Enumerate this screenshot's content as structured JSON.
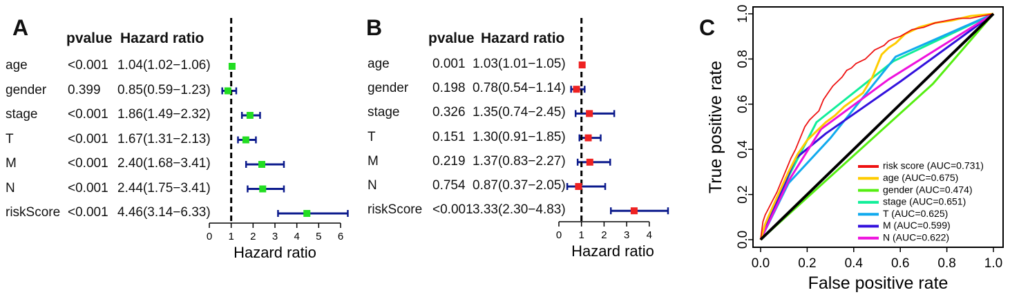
{
  "chart_data": [
    {
      "type": "forest",
      "panel_label": "A",
      "headers": {
        "pvalue": "pvalue",
        "hr": "Hazard ratio"
      },
      "xlabel": "Hazard ratio",
      "xlim": [
        0,
        6
      ],
      "xticks": [
        "0",
        "1",
        "2",
        "3",
        "4",
        "5",
        "6"
      ],
      "reference_line": 1,
      "marker_color": "#22dd22",
      "ci_color": "#0b1a8c",
      "rows": [
        {
          "name": "age",
          "pvalue": "<0.001",
          "hr_text": "1.04(1.02−1.06)",
          "hr": 1.04,
          "lower": 1.02,
          "upper": 1.06
        },
        {
          "name": "gender",
          "pvalue": "0.399",
          "hr_text": "0.85(0.59−1.23)",
          "hr": 0.85,
          "lower": 0.59,
          "upper": 1.23
        },
        {
          "name": "stage",
          "pvalue": "<0.001",
          "hr_text": "1.86(1.49−2.32)",
          "hr": 1.86,
          "lower": 1.49,
          "upper": 2.32
        },
        {
          "name": "T",
          "pvalue": "<0.001",
          "hr_text": "1.67(1.31−2.13)",
          "hr": 1.67,
          "lower": 1.31,
          "upper": 2.13
        },
        {
          "name": "M",
          "pvalue": "<0.001",
          "hr_text": "2.40(1.68−3.41)",
          "hr": 2.4,
          "lower": 1.68,
          "upper": 3.41
        },
        {
          "name": "N",
          "pvalue": "<0.001",
          "hr_text": "2.44(1.75−3.41)",
          "hr": 2.44,
          "lower": 1.75,
          "upper": 3.41
        },
        {
          "name": "riskScore",
          "pvalue": "<0.001",
          "hr_text": "4.46(3.14−6.33)",
          "hr": 4.46,
          "lower": 3.14,
          "upper": 6.33
        }
      ]
    },
    {
      "type": "forest",
      "panel_label": "B",
      "headers": {
        "pvalue": "pvalue",
        "hr": "Hazard ratio"
      },
      "xlabel": "Hazard ratio",
      "xlim": [
        0,
        4.8
      ],
      "xticks": [
        "0",
        "1",
        "2",
        "3",
        "4"
      ],
      "reference_line": 1,
      "marker_color": "#ee2222",
      "ci_color": "#0b1a8c",
      "rows": [
        {
          "name": "age",
          "pvalue": "0.001",
          "hr_text": "1.03(1.01−1.05)",
          "hr": 1.03,
          "lower": 1.01,
          "upper": 1.05
        },
        {
          "name": "gender",
          "pvalue": "0.198",
          "hr_text": "0.78(0.54−1.14)",
          "hr": 0.78,
          "lower": 0.54,
          "upper": 1.14
        },
        {
          "name": "stage",
          "pvalue": "0.326",
          "hr_text": "1.35(0.74−2.45)",
          "hr": 1.35,
          "lower": 0.74,
          "upper": 2.45
        },
        {
          "name": "T",
          "pvalue": "0.151",
          "hr_text": "1.30(0.91−1.85)",
          "hr": 1.3,
          "lower": 0.91,
          "upper": 1.85
        },
        {
          "name": "M",
          "pvalue": "0.219",
          "hr_text": "1.37(0.83−2.27)",
          "hr": 1.37,
          "lower": 0.83,
          "upper": 2.27
        },
        {
          "name": "N",
          "pvalue": "0.754",
          "hr_text": "0.87(0.37−2.05)",
          "hr": 0.87,
          "lower": 0.37,
          "upper": 2.05
        },
        {
          "name": "riskScore",
          "pvalue": "<0.001",
          "hr_text": "3.33(2.30−4.83)",
          "hr": 3.33,
          "lower": 2.3,
          "upper": 4.83
        }
      ]
    },
    {
      "type": "line",
      "panel_label": "C",
      "xlabel": "False positive rate",
      "ylabel": "True positive rate",
      "xlim": [
        0,
        1
      ],
      "ylim": [
        0,
        1
      ],
      "xticks": [
        "0.0",
        "0.2",
        "0.4",
        "0.6",
        "0.8",
        "1.0"
      ],
      "yticks": [
        "0.0",
        "0.2",
        "0.4",
        "0.6",
        "0.8",
        "1.0"
      ],
      "legend_position": "bottom-right",
      "diagonal_color": "#000000",
      "series": [
        {
          "name": "risk score (AUC=0.731)",
          "color": "#ee1111",
          "x": [
            0,
            0.01,
            0.02,
            0.03,
            0.05,
            0.07,
            0.09,
            0.11,
            0.13,
            0.15,
            0.17,
            0.19,
            0.21,
            0.23,
            0.25,
            0.27,
            0.29,
            0.31,
            0.33,
            0.35,
            0.37,
            0.39,
            0.41,
            0.43,
            0.45,
            0.47,
            0.49,
            0.51,
            0.53,
            0.55,
            0.57,
            0.6,
            0.65,
            0.7,
            0.75,
            0.8,
            0.85,
            0.9,
            0.95,
            1.0
          ],
          "y": [
            0,
            0.08,
            0.11,
            0.13,
            0.17,
            0.21,
            0.26,
            0.31,
            0.36,
            0.4,
            0.45,
            0.5,
            0.53,
            0.55,
            0.57,
            0.62,
            0.65,
            0.68,
            0.7,
            0.72,
            0.75,
            0.76,
            0.78,
            0.79,
            0.8,
            0.82,
            0.84,
            0.85,
            0.86,
            0.88,
            0.89,
            0.9,
            0.93,
            0.94,
            0.96,
            0.97,
            0.98,
            0.98,
            0.99,
            1.0
          ]
        },
        {
          "name": "age (AUC=0.675)",
          "color": "#ffcc00",
          "x": [
            0,
            0.02,
            0.05,
            0.08,
            0.12,
            0.16,
            0.2,
            0.24,
            0.28,
            0.32,
            0.36,
            0.4,
            0.44,
            0.48,
            0.5,
            0.52,
            0.55,
            0.58,
            0.62,
            0.68,
            0.75,
            0.82,
            0.9,
            1.0
          ],
          "y": [
            0,
            0.07,
            0.14,
            0.21,
            0.3,
            0.38,
            0.44,
            0.48,
            0.52,
            0.55,
            0.59,
            0.62,
            0.65,
            0.72,
            0.77,
            0.82,
            0.85,
            0.87,
            0.91,
            0.94,
            0.96,
            0.97,
            0.99,
            1.0
          ]
        },
        {
          "name": "gender (AUC=0.474)",
          "color": "#55ee11",
          "x": [
            0,
            0.74,
            1.0
          ],
          "y": [
            0,
            0.69,
            1.0
          ]
        },
        {
          "name": "stage (AUC=0.651)",
          "color": "#11ee99",
          "x": [
            0,
            0.12,
            0.24,
            0.57,
            1.0
          ],
          "y": [
            0,
            0.28,
            0.52,
            0.79,
            1.0
          ]
        },
        {
          "name": "T (AUC=0.625)",
          "color": "#11aaee",
          "x": [
            0,
            0.12,
            0.3,
            0.58,
            1.0
          ],
          "y": [
            0,
            0.25,
            0.45,
            0.81,
            1.0
          ]
        },
        {
          "name": "M (AUC=0.599)",
          "color": "#3311dd",
          "x": [
            0,
            0.15,
            0.28,
            0.6,
            1.0
          ],
          "y": [
            0,
            0.36,
            0.47,
            0.7,
            1.0
          ]
        },
        {
          "name": "N (AUC=0.622)",
          "color": "#ee11dd",
          "x": [
            0,
            0.12,
            0.26,
            0.55,
            1.0
          ],
          "y": [
            0,
            0.26,
            0.49,
            0.71,
            1.0
          ]
        }
      ]
    }
  ]
}
